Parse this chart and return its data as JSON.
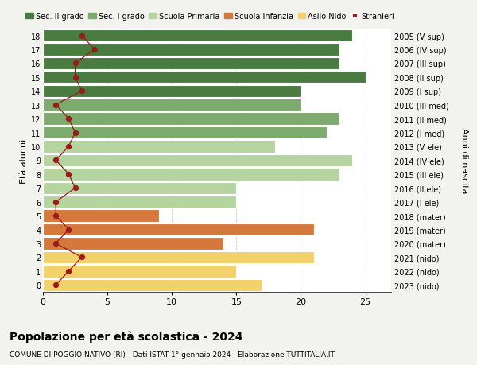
{
  "ages": [
    18,
    17,
    16,
    15,
    14,
    13,
    12,
    11,
    10,
    9,
    8,
    7,
    6,
    5,
    4,
    3,
    2,
    1,
    0
  ],
  "years_labels": [
    "2005 (V sup)",
    "2006 (IV sup)",
    "2007 (III sup)",
    "2008 (II sup)",
    "2009 (I sup)",
    "2010 (III med)",
    "2011 (II med)",
    "2012 (I med)",
    "2013 (V ele)",
    "2014 (IV ele)",
    "2015 (III ele)",
    "2016 (II ele)",
    "2017 (I ele)",
    "2018 (mater)",
    "2019 (mater)",
    "2020 (mater)",
    "2021 (nido)",
    "2022 (nido)",
    "2023 (nido)"
  ],
  "bar_values": [
    24,
    23,
    23,
    25,
    20,
    20,
    23,
    22,
    18,
    24,
    23,
    15,
    15,
    9,
    21,
    14,
    21,
    15,
    17
  ],
  "bar_colors": [
    "#4a7c42",
    "#4a7c42",
    "#4a7c42",
    "#4a7c42",
    "#4a7c42",
    "#7daa6e",
    "#7daa6e",
    "#7daa6e",
    "#b5d4a0",
    "#b5d4a0",
    "#b5d4a0",
    "#b5d4a0",
    "#b5d4a0",
    "#d4783c",
    "#d4783c",
    "#d4783c",
    "#f2d06a",
    "#f2d06a",
    "#f2d06a"
  ],
  "stranieri_values": [
    3,
    4,
    2.5,
    2.5,
    3,
    1,
    2,
    2.5,
    2,
    1,
    2,
    2.5,
    1,
    1,
    2,
    1,
    3,
    2,
    1
  ],
  "legend_labels": [
    "Sec. II grado",
    "Sec. I grado",
    "Scuola Primaria",
    "Scuola Infanzia",
    "Asilo Nido",
    "Stranieri"
  ],
  "legend_colors": [
    "#4a7c42",
    "#7daa6e",
    "#b5d4a0",
    "#d4783c",
    "#f2d06a",
    "#9b1a1a"
  ],
  "title": "Popolazione per età scolastica - 2024",
  "subtitle": "COMUNE DI POGGIO NATIVO (RI) - Dati ISTAT 1° gennaio 2024 - Elaborazione TUTTITALIA.IT",
  "ylabel": "Età alunni",
  "right_ylabel": "Anni di nascita",
  "xlim": [
    0,
    27
  ],
  "background_color": "#f2f2ee",
  "bar_background": "#ffffff"
}
